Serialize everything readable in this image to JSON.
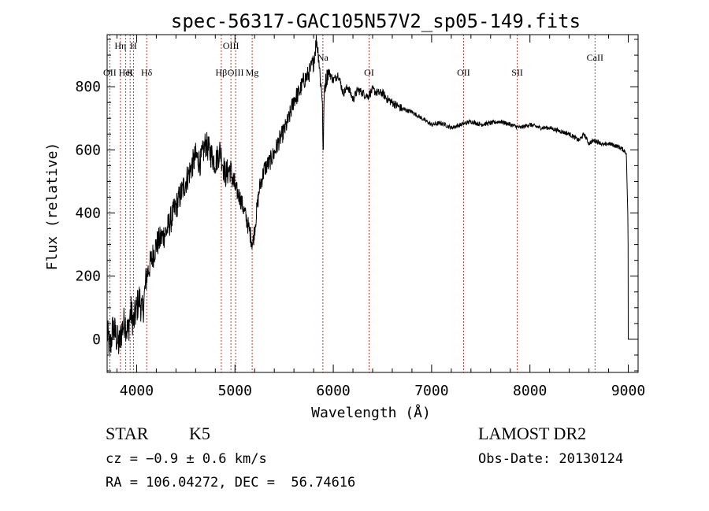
{
  "chart_data": {
    "type": "line",
    "title": "spec-56317-GAC105N57V2_sp05-149.fits",
    "xlabel": "Wavelength (Å)",
    "ylabel": "Flux (relative)",
    "xlim": [
      3700,
      9100
    ],
    "ylim": [
      -105,
      965
    ],
    "xticks": [
      4000,
      5000,
      6000,
      7000,
      8000,
      9000
    ],
    "yticks": [
      0,
      200,
      400,
      600,
      800
    ],
    "grid": false,
    "series": [
      {
        "x": [
          3700,
          3730,
          3760,
          3790,
          3820,
          3850,
          3880,
          3910,
          3940,
          3970,
          4000,
          4030,
          4060,
          4100,
          4150,
          4200,
          4250,
          4300,
          4350,
          4400,
          4450,
          4500,
          4550,
          4600,
          4650,
          4700,
          4750,
          4800,
          4850,
          4900,
          4950,
          5000,
          5050,
          5100,
          5150,
          5180,
          5200,
          5250,
          5300,
          5350,
          5400,
          5450,
          5500,
          5550,
          5600,
          5650,
          5700,
          5750,
          5800,
          5830,
          5850,
          5870,
          5890,
          5895,
          5910,
          5950,
          6000,
          6050,
          6100,
          6150,
          6200,
          6250,
          6300,
          6350,
          6400,
          6450,
          6500,
          6550,
          6600,
          6650,
          6700,
          6800,
          6900,
          7000,
          7100,
          7200,
          7300,
          7400,
          7500,
          7600,
          7700,
          7800,
          7900,
          8000,
          8100,
          8200,
          8300,
          8400,
          8500,
          8550,
          8600,
          8650,
          8700,
          8750,
          8800,
          8850,
          8900,
          8950,
          8980,
          8995,
          8998,
          9000
        ],
        "y": [
          20,
          -30,
          40,
          10,
          -20,
          30,
          60,
          20,
          90,
          50,
          100,
          130,
          80,
          200,
          250,
          300,
          320,
          340,
          380,
          420,
          460,
          500,
          540,
          580,
          560,
          620,
          590,
          560,
          600,
          520,
          540,
          480,
          450,
          400,
          340,
          300,
          350,
          480,
          540,
          560,
          590,
          630,
          660,
          700,
          760,
          780,
          820,
          840,
          880,
          950,
          900,
          820,
          760,
          560,
          800,
          850,
          820,
          840,
          780,
          800,
          760,
          790,
          780,
          770,
          790,
          780,
          780,
          760,
          750,
          740,
          730,
          720,
          700,
          680,
          685,
          670,
          680,
          690,
          680,
          685,
          690,
          680,
          670,
          680,
          670,
          670,
          660,
          650,
          630,
          650,
          620,
          630,
          625,
          615,
          620,
          615,
          610,
          600,
          590,
          400,
          300,
          0
        ]
      }
    ],
    "lines": [
      {
        "label": "OII",
        "wavelength": 3727,
        "row": 3
      },
      {
        "label": "Hη",
        "wavelength": 3835,
        "row": 0
      },
      {
        "label": "HeI",
        "wavelength": 3889,
        "row": 3
      },
      {
        "label": "K",
        "wavelength": 3934,
        "row": 2
      },
      {
        "label": "H",
        "wavelength": 3968,
        "row": 0
      },
      {
        "label": "Hδ",
        "wavelength": 4102,
        "row": 3
      },
      {
        "label": "Hβ",
        "wavelength": 4861,
        "row": 2
      },
      {
        "label": "OIII",
        "wavelength": 4959,
        "row": 0
      },
      {
        "label": "OIII",
        "wavelength": 5007,
        "row": 3
      },
      {
        "label": "Mg",
        "wavelength": 5175,
        "row": 2
      },
      {
        "label": "Na",
        "wavelength": 5894,
        "row": 1
      },
      {
        "label": "OI",
        "wavelength": 6364,
        "row": 3
      },
      {
        "label": "OII",
        "wavelength": 7325,
        "row": 2
      },
      {
        "label": "SII",
        "wavelength": 7871,
        "row": 2
      },
      {
        "label": "CaII",
        "wavelength": 8662,
        "row": 1
      }
    ]
  },
  "info": {
    "class": "STAR",
    "subclass": "K5",
    "survey": "LAMOST DR2",
    "cz": "cz = −0.9 ± 0.6 km/s",
    "obs_date": "Obs-Date: 20130124",
    "coords": "RA = 106.04272, DEC =  56.74616"
  }
}
